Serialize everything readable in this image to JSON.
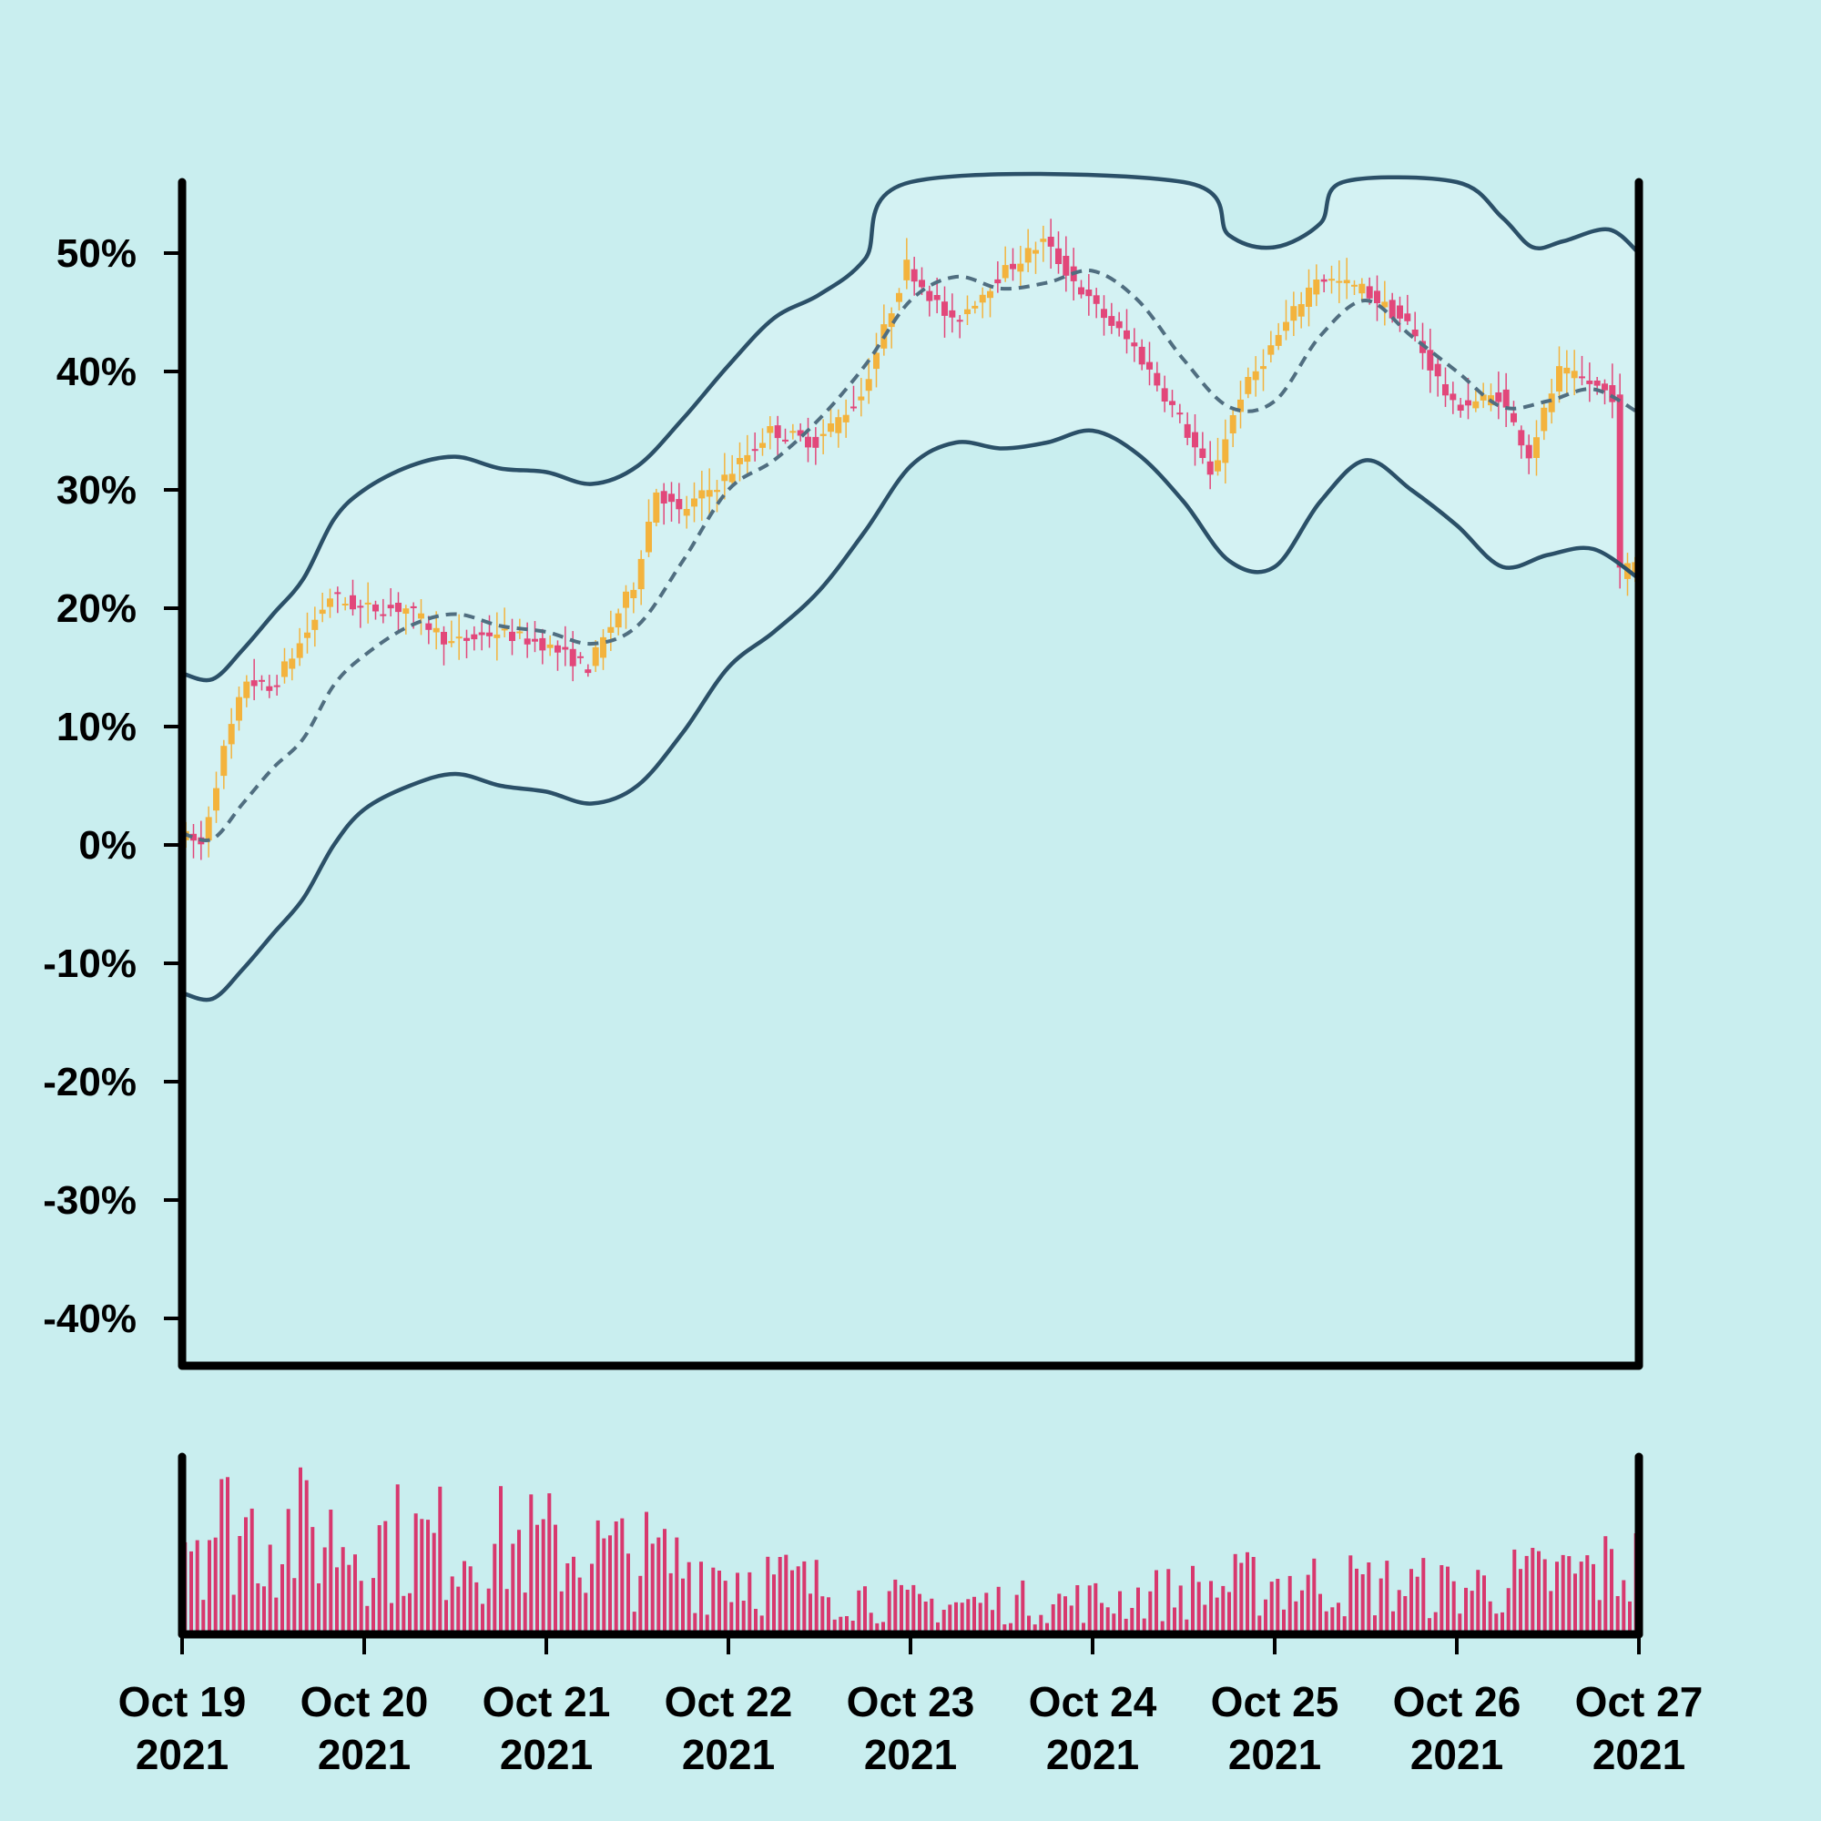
{
  "colors": {
    "background": "#c9eeef",
    "band_fill": "#d4f2f3",
    "band_line": "#2b5068",
    "mid_line": "#506e80",
    "up": "#f3b33d",
    "down": "#e2477a",
    "volume": "#d8386e",
    "axis": "#000000"
  },
  "chart_data": {
    "type": "candlestick",
    "title": "",
    "xlabel": "",
    "ylabel": "",
    "x_range": [
      "2021-10-19 00:00",
      "2021-10-27 00:00"
    ],
    "ylim": [
      -44,
      56
    ],
    "y_ticks": [
      {
        "value": 50,
        "label": "50%"
      },
      {
        "value": 40,
        "label": "40%"
      },
      {
        "value": 30,
        "label": "30%"
      },
      {
        "value": 20,
        "label": "20%"
      },
      {
        "value": 10,
        "label": "10%"
      },
      {
        "value": 0,
        "label": "0%"
      },
      {
        "value": -10,
        "label": "-10%"
      },
      {
        "value": -20,
        "label": "-20%"
      },
      {
        "value": -30,
        "label": "-30%"
      },
      {
        "value": -40,
        "label": "-40%"
      }
    ],
    "x_ticks": [
      {
        "date": "2021-10-19",
        "line1": "Oct 19",
        "line2": "2021"
      },
      {
        "date": "2021-10-20",
        "line1": "Oct 20",
        "line2": "2021"
      },
      {
        "date": "2021-10-21",
        "line1": "Oct 21",
        "line2": "2021"
      },
      {
        "date": "2021-10-22",
        "line1": "Oct 22",
        "line2": "2021"
      },
      {
        "date": "2021-10-23",
        "line1": "Oct 23",
        "line2": "2021"
      },
      {
        "date": "2021-10-24",
        "line1": "Oct 24",
        "line2": "2021"
      },
      {
        "date": "2021-10-25",
        "line1": "Oct 25",
        "line2": "2021"
      },
      {
        "date": "2021-10-26",
        "line1": "Oct 26",
        "line2": "2021"
      },
      {
        "date": "2021-10-27",
        "line1": "Oct 27",
        "line2": "2021"
      }
    ],
    "close_path": [
      [
        "2021-10-19 00:00",
        1
      ],
      [
        "2021-10-19 03:00",
        0
      ],
      [
        "2021-10-19 06:00",
        8
      ],
      [
        "2021-10-19 09:00",
        14
      ],
      [
        "2021-10-19 12:00",
        13
      ],
      [
        "2021-10-19 16:00",
        17
      ],
      [
        "2021-10-19 20:00",
        21
      ],
      [
        "2021-10-20 00:00",
        20
      ],
      [
        "2021-10-20 06:00",
        20
      ],
      [
        "2021-10-20 12:00",
        17
      ],
      [
        "2021-10-20 18:00",
        18
      ],
      [
        "2021-10-21 00:00",
        17
      ],
      [
        "2021-10-21 06:00",
        15
      ],
      [
        "2021-10-21 12:00",
        22
      ],
      [
        "2021-10-21 15:00",
        30
      ],
      [
        "2021-10-21 18:00",
        28
      ],
      [
        "2021-10-22 00:00",
        31
      ],
      [
        "2021-10-22 06:00",
        35
      ],
      [
        "2021-10-22 12:00",
        34
      ],
      [
        "2021-10-22 18:00",
        38
      ],
      [
        "2021-10-23 00:00",
        49
      ],
      [
        "2021-10-23 06:00",
        44
      ],
      [
        "2021-10-23 12:00",
        48
      ],
      [
        "2021-10-23 18:00",
        51
      ],
      [
        "2021-10-24 00:00",
        46
      ],
      [
        "2021-10-24 06:00",
        42
      ],
      [
        "2021-10-24 12:00",
        36
      ],
      [
        "2021-10-24 16:00",
        31
      ],
      [
        "2021-10-24 20:00",
        38
      ],
      [
        "2021-10-25 00:00",
        42
      ],
      [
        "2021-10-25 06:00",
        48
      ],
      [
        "2021-10-25 12:00",
        47
      ],
      [
        "2021-10-25 18:00",
        44
      ],
      [
        "2021-10-26 00:00",
        37
      ],
      [
        "2021-10-26 06:00",
        38
      ],
      [
        "2021-10-26 10:00",
        33
      ],
      [
        "2021-10-26 14:00",
        40
      ],
      [
        "2021-10-26 18:00",
        39
      ],
      [
        "2021-10-26 21:00",
        38
      ],
      [
        "2021-10-26 22:00",
        23
      ],
      [
        "2021-10-27 00:00",
        24
      ]
    ],
    "series": [
      {
        "kind": "upper-band",
        "points": [
          [
            "2021-10-19 00:00",
            14.5
          ],
          [
            "2021-10-19 04:00",
            14.0
          ],
          [
            "2021-10-19 08:00",
            16.5
          ],
          [
            "2021-10-19 12:00",
            19.5
          ],
          [
            "2021-10-19 16:00",
            22.5
          ],
          [
            "2021-10-19 20:00",
            27.5
          ],
          [
            "2021-10-20 00:00",
            30.0
          ],
          [
            "2021-10-20 06:00",
            32.0
          ],
          [
            "2021-10-20 12:00",
            32.8
          ],
          [
            "2021-10-20 18:00",
            31.8
          ],
          [
            "2021-10-21 00:00",
            31.5
          ],
          [
            "2021-10-21 06:00",
            30.5
          ],
          [
            "2021-10-21 12:00",
            32.0
          ],
          [
            "2021-10-21 18:00",
            36.0
          ],
          [
            "2021-10-22 00:00",
            40.5
          ],
          [
            "2021-10-22 06:00",
            44.5
          ],
          [
            "2021-10-22 12:00",
            46.5
          ],
          [
            "2021-10-22 18:00",
            49.5
          ],
          [
            "2021-10-23 00:00",
            56.0
          ],
          [
            "2021-10-24 12:00",
            56.0
          ],
          [
            "2021-10-24 18:00",
            51.5
          ],
          [
            "2021-10-25 00:00",
            50.5
          ],
          [
            "2021-10-25 06:00",
            52.5
          ],
          [
            "2021-10-25 09:00",
            56.0
          ],
          [
            "2021-10-26 00:00",
            56.0
          ],
          [
            "2021-10-26 06:00",
            53.0
          ],
          [
            "2021-10-26 10:00",
            50.5
          ],
          [
            "2021-10-26 14:00",
            51.0
          ],
          [
            "2021-10-26 20:00",
            52.0
          ],
          [
            "2021-10-27 00:00",
            50.0
          ]
        ]
      },
      {
        "kind": "middle-line",
        "points": [
          [
            "2021-10-19 00:00",
            1.0
          ],
          [
            "2021-10-19 04:00",
            0.5
          ],
          [
            "2021-10-19 08:00",
            3.5
          ],
          [
            "2021-10-19 12:00",
            6.5
          ],
          [
            "2021-10-19 16:00",
            9.0
          ],
          [
            "2021-10-19 20:00",
            13.5
          ],
          [
            "2021-10-20 00:00",
            16.0
          ],
          [
            "2021-10-20 06:00",
            18.5
          ],
          [
            "2021-10-20 12:00",
            19.5
          ],
          [
            "2021-10-20 18:00",
            18.5
          ],
          [
            "2021-10-21 00:00",
            18.0
          ],
          [
            "2021-10-21 06:00",
            17.0
          ],
          [
            "2021-10-21 12:00",
            18.5
          ],
          [
            "2021-10-21 18:00",
            24.0
          ],
          [
            "2021-10-22 00:00",
            30.0
          ],
          [
            "2021-10-22 06:00",
            32.5
          ],
          [
            "2021-10-22 12:00",
            36.0
          ],
          [
            "2021-10-22 18:00",
            40.5
          ],
          [
            "2021-10-23 00:00",
            46.0
          ],
          [
            "2021-10-23 06:00",
            48.0
          ],
          [
            "2021-10-23 12:00",
            47.0
          ],
          [
            "2021-10-23 18:00",
            47.5
          ],
          [
            "2021-10-24 00:00",
            48.5
          ],
          [
            "2021-10-24 06:00",
            46.0
          ],
          [
            "2021-10-24 12:00",
            41.0
          ],
          [
            "2021-10-24 18:00",
            37.0
          ],
          [
            "2021-10-25 00:00",
            37.5
          ],
          [
            "2021-10-25 06:00",
            43.0
          ],
          [
            "2021-10-25 12:00",
            46.0
          ],
          [
            "2021-10-25 18:00",
            43.0
          ],
          [
            "2021-10-26 00:00",
            40.0
          ],
          [
            "2021-10-26 06:00",
            37.0
          ],
          [
            "2021-10-26 12:00",
            37.5
          ],
          [
            "2021-10-26 18:00",
            38.5
          ],
          [
            "2021-10-27 00:00",
            36.5
          ]
        ]
      },
      {
        "kind": "lower-band",
        "points": [
          [
            "2021-10-19 00:00",
            -12.5
          ],
          [
            "2021-10-19 04:00",
            -13.0
          ],
          [
            "2021-10-19 08:00",
            -10.5
          ],
          [
            "2021-10-19 12:00",
            -7.5
          ],
          [
            "2021-10-19 16:00",
            -4.5
          ],
          [
            "2021-10-19 20:00",
            0.0
          ],
          [
            "2021-10-20 00:00",
            3.0
          ],
          [
            "2021-10-20 06:00",
            5.0
          ],
          [
            "2021-10-20 12:00",
            6.0
          ],
          [
            "2021-10-20 18:00",
            5.0
          ],
          [
            "2021-10-21 00:00",
            4.5
          ],
          [
            "2021-10-21 06:00",
            3.5
          ],
          [
            "2021-10-21 12:00",
            5.0
          ],
          [
            "2021-10-21 18:00",
            9.5
          ],
          [
            "2021-10-22 00:00",
            15.0
          ],
          [
            "2021-10-22 06:00",
            18.0
          ],
          [
            "2021-10-22 12:00",
            21.5
          ],
          [
            "2021-10-22 18:00",
            26.5
          ],
          [
            "2021-10-23 00:00",
            32.0
          ],
          [
            "2021-10-23 06:00",
            34.0
          ],
          [
            "2021-10-23 12:00",
            33.5
          ],
          [
            "2021-10-23 18:00",
            34.0
          ],
          [
            "2021-10-24 00:00",
            35.0
          ],
          [
            "2021-10-24 06:00",
            33.0
          ],
          [
            "2021-10-24 12:00",
            29.0
          ],
          [
            "2021-10-24 18:00",
            24.0
          ],
          [
            "2021-10-25 00:00",
            23.5
          ],
          [
            "2021-10-25 06:00",
            29.0
          ],
          [
            "2021-10-25 12:00",
            32.5
          ],
          [
            "2021-10-25 18:00",
            30.0
          ],
          [
            "2021-10-26 00:00",
            27.0
          ],
          [
            "2021-10-26 06:00",
            23.5
          ],
          [
            "2021-10-26 12:00",
            24.5
          ],
          [
            "2021-10-26 18:00",
            25.0
          ],
          [
            "2021-10-27 00:00",
            22.5
          ]
        ]
      }
    ],
    "volume_profile": [
      [
        "2021-10-19 00:00",
        0.75
      ],
      [
        "2021-10-20 00:00",
        0.62
      ],
      [
        "2021-10-21 00:00",
        0.58
      ],
      [
        "2021-10-22 00:00",
        0.42
      ],
      [
        "2021-10-23 00:00",
        0.2
      ],
      [
        "2021-10-24 00:00",
        0.22
      ],
      [
        "2021-10-25 00:00",
        0.35
      ],
      [
        "2021-10-26 00:00",
        0.3
      ],
      [
        "2021-10-27 00:00",
        0.45
      ]
    ]
  }
}
